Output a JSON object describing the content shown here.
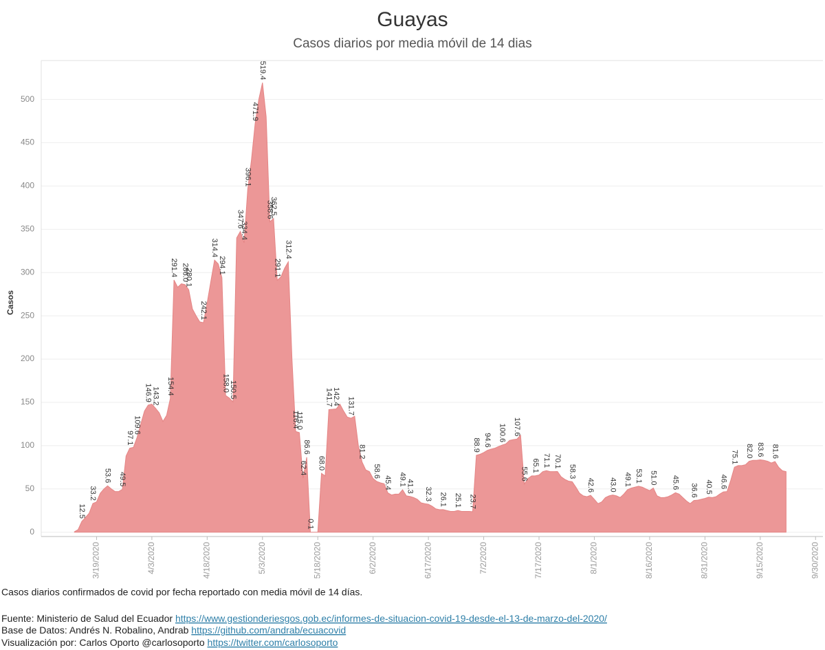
{
  "chart_data": {
    "type": "area",
    "title": "Guayas",
    "subtitle": "Casos diarios por media móvil de 14 dias",
    "y_label": "Casos",
    "x": [
      "3/13/2020",
      "3/14/2020",
      "3/15/2020",
      "3/16/2020",
      "3/17/2020",
      "3/18/2020",
      "3/19/2020",
      "3/20/2020",
      "3/21/2020",
      "3/22/2020",
      "3/23/2020",
      "3/24/2020",
      "3/25/2020",
      "3/26/2020",
      "3/27/2020",
      "3/28/2020",
      "3/29/2020",
      "3/30/2020",
      "3/31/2020",
      "4/1/2020",
      "4/2/2020",
      "4/3/2020",
      "4/4/2020",
      "4/5/2020",
      "4/6/2020",
      "4/7/2020",
      "4/8/2020",
      "4/9/2020",
      "4/10/2020",
      "4/11/2020",
      "4/12/2020",
      "4/13/2020",
      "4/14/2020",
      "4/15/2020",
      "4/16/2020",
      "4/17/2020",
      "4/18/2020",
      "4/19/2020",
      "4/20/2020",
      "4/21/2020",
      "4/22/2020",
      "4/23/2020",
      "4/24/2020",
      "4/25/2020",
      "4/26/2020",
      "4/27/2020",
      "4/28/2020",
      "4/29/2020",
      "4/30/2020",
      "5/1/2020",
      "5/2/2020",
      "5/3/2020",
      "5/4/2020",
      "5/5/2020",
      "5/6/2020",
      "5/7/2020",
      "5/8/2020",
      "5/9/2020",
      "5/10/2020",
      "5/11/2020",
      "5/12/2020",
      "5/13/2020",
      "5/14/2020",
      "5/15/2020",
      "5/16/2020",
      "5/17/2020",
      "5/18/2020",
      "5/19/2020",
      "5/20/2020",
      "5/21/2020",
      "5/22/2020",
      "5/23/2020",
      "5/24/2020",
      "5/25/2020",
      "5/26/2020",
      "5/27/2020",
      "5/28/2020",
      "5/29/2020",
      "5/30/2020",
      "5/31/2020",
      "6/1/2020",
      "6/2/2020",
      "6/3/2020",
      "6/4/2020",
      "6/5/2020",
      "6/6/2020",
      "6/7/2020",
      "6/8/2020",
      "6/9/2020",
      "6/10/2020",
      "6/11/2020",
      "6/12/2020",
      "6/13/2020",
      "6/14/2020",
      "6/15/2020",
      "6/16/2020",
      "6/17/2020",
      "6/18/2020",
      "6/19/2020",
      "6/20/2020",
      "6/21/2020",
      "6/22/2020",
      "6/23/2020",
      "6/24/2020",
      "6/25/2020",
      "6/26/2020",
      "6/27/2020",
      "6/28/2020",
      "6/29/2020",
      "6/30/2020",
      "7/1/2020",
      "7/2/2020",
      "7/3/2020",
      "7/4/2020",
      "7/5/2020",
      "7/6/2020",
      "7/7/2020",
      "7/8/2020",
      "7/9/2020",
      "7/10/2020",
      "7/11/2020",
      "7/12/2020",
      "7/13/2020",
      "7/14/2020",
      "7/15/2020",
      "7/16/2020",
      "7/17/2020",
      "7/18/2020",
      "7/19/2020",
      "7/20/2020",
      "7/21/2020",
      "7/22/2020",
      "7/23/2020",
      "7/24/2020",
      "7/25/2020",
      "7/26/2020",
      "7/27/2020",
      "7/28/2020",
      "7/29/2020",
      "7/30/2020",
      "7/31/2020",
      "8/1/2020",
      "8/2/2020",
      "8/3/2020",
      "8/4/2020",
      "8/5/2020",
      "8/6/2020",
      "8/7/2020",
      "8/8/2020",
      "8/9/2020",
      "8/10/2020",
      "8/11/2020",
      "8/12/2020",
      "8/13/2020",
      "8/14/2020",
      "8/15/2020",
      "8/16/2020",
      "8/17/2020",
      "8/18/2020",
      "8/19/2020",
      "8/20/2020",
      "8/21/2020",
      "8/22/2020",
      "8/23/2020",
      "8/24/2020",
      "8/25/2020",
      "8/26/2020",
      "8/27/2020",
      "8/28/2020",
      "8/29/2020",
      "8/30/2020",
      "8/31/2020",
      "9/1/2020",
      "9/2/2020",
      "9/3/2020",
      "9/4/2020",
      "9/5/2020",
      "9/6/2020",
      "9/7/2020",
      "9/8/2020",
      "9/9/2020",
      "9/10/2020",
      "9/11/2020",
      "9/12/2020",
      "9/13/2020",
      "9/14/2020",
      "9/15/2020",
      "9/16/2020",
      "9/17/2020",
      "9/18/2020",
      "9/19/2020",
      "9/20/2020",
      "9/21/2020",
      "9/22/2020"
    ],
    "series": [
      {
        "color": "#ec9797",
        "line_color": "#e48585",
        "values": [
          0.5,
          3,
          12.5,
          17,
          22,
          33.2,
          35,
          45,
          50,
          53.6,
          50,
          47,
          47,
          49.5,
          88,
          97.1,
          98,
          109.6,
          125,
          140,
          146.9,
          148,
          143.2,
          138,
          128,
          135,
          154.4,
          291.4,
          283,
          287,
          286.0,
          280.1,
          258,
          250,
          243,
          242.1,
          265,
          290,
          314.4,
          310,
          294.1,
          158.0,
          155,
          150.5,
          340,
          347.6,
          334.4,
          396.1,
          430,
          471.9,
          500,
          519.4,
          480,
          358.6,
          362.5,
          291.1,
          295,
          305,
          312.4,
          200,
          116.4,
          115.0,
          62.4,
          86.6,
          0.1,
          0,
          0,
          68.0,
          65,
          141.7,
          142,
          142.4,
          148,
          140,
          133,
          131.7,
          134,
          100,
          81.2,
          72,
          70,
          62,
          58.6,
          57,
          56,
          45.4,
          43,
          44,
          44,
          49.1,
          42,
          41.3,
          40,
          38,
          34,
          33,
          32.3,
          30,
          27,
          26,
          26.1,
          25,
          24,
          24,
          25.1,
          24,
          24,
          24,
          23.7,
          88.9,
          90,
          92,
          94.6,
          96,
          97,
          99,
          100.6,
          102,
          106,
          107,
          107.6,
          112,
          55.6,
          62,
          65,
          65.1,
          66,
          70,
          71.1,
          70,
          70,
          70.1,
          64,
          61,
          59,
          58.3,
          52,
          45,
          42,
          41,
          42.6,
          38,
          33,
          35,
          40,
          42,
          43.0,
          42,
          40,
          44,
          49.1,
          51,
          52,
          53.1,
          52,
          50,
          48,
          51.0,
          42,
          40,
          40,
          41,
          43,
          45.6,
          44,
          40,
          36,
          33,
          36.6,
          37,
          38,
          39,
          40.5,
          40,
          41,
          44,
          46.6,
          47,
          60,
          75.1,
          77,
          77,
          78,
          82.0,
          83,
          83,
          83.6,
          83,
          82,
          80,
          81.6,
          75,
          71,
          70
        ],
        "value_labels": [
          null,
          null,
          "12.5",
          null,
          null,
          "33.2",
          null,
          null,
          null,
          "53.6",
          null,
          null,
          null,
          "49.5",
          null,
          "97.1",
          null,
          "109.6",
          null,
          null,
          "146.9",
          null,
          "143.2",
          null,
          null,
          null,
          "154.4",
          "291.4",
          null,
          null,
          "286.0",
          "280.1",
          null,
          null,
          null,
          "242.1",
          null,
          null,
          "314.4",
          null,
          "294.1",
          "158.0",
          null,
          "150.5",
          null,
          "347.6",
          "334.4",
          "396.1",
          null,
          "471.9",
          null,
          "519.4",
          null,
          "358.6",
          "362.5",
          "291.1",
          null,
          null,
          "312.4",
          null,
          "116.4",
          "115.0",
          "62.4",
          "86.6",
          "0.1",
          null,
          null,
          "68.0",
          null,
          "141.7",
          null,
          "142.4",
          null,
          null,
          null,
          "131.7",
          null,
          null,
          "81.2",
          null,
          null,
          null,
          "58.6",
          null,
          null,
          "45.4",
          null,
          null,
          null,
          "49.1",
          null,
          "41.3",
          null,
          null,
          null,
          null,
          "32.3",
          null,
          null,
          null,
          "26.1",
          null,
          null,
          null,
          "25.1",
          null,
          null,
          null,
          "23.7",
          "88.9",
          null,
          null,
          "94.6",
          null,
          null,
          null,
          "100.6",
          null,
          null,
          null,
          "107.6",
          null,
          "55.6",
          null,
          null,
          "65.1",
          null,
          null,
          "71.1",
          null,
          null,
          "70.1",
          null,
          null,
          null,
          "58.3",
          null,
          null,
          null,
          null,
          "42.6",
          null,
          null,
          null,
          null,
          null,
          "43.0",
          null,
          null,
          null,
          "49.1",
          null,
          null,
          "53.1",
          null,
          null,
          null,
          "51.0",
          null,
          null,
          null,
          null,
          null,
          "45.6",
          null,
          null,
          null,
          null,
          "36.6",
          null,
          null,
          null,
          "40.5",
          null,
          null,
          null,
          "46.6",
          null,
          null,
          "75.1",
          null,
          null,
          null,
          "82.0",
          null,
          null,
          "83.6",
          null,
          null,
          null,
          "81.6",
          null,
          null,
          null
        ]
      }
    ],
    "xlim": [
      "3/4/2020",
      "10/2/2020"
    ],
    "xticks": [
      "3/19/2020",
      "4/3/2020",
      "4/18/2020",
      "5/3/2020",
      "5/18/2020",
      "6/2/2020",
      "6/17/2020",
      "7/2/2020",
      "7/17/2020",
      "8/1/2020",
      "8/16/2020",
      "8/31/2020",
      "9/15/2020",
      "9/30/2020"
    ],
    "ylim": [
      -5,
      545
    ],
    "yticks": [
      0,
      50,
      100,
      150,
      200,
      250,
      300,
      350,
      400,
      450,
      500
    ],
    "grid": true
  },
  "footer": {
    "note": "Casos diarios confirmados de covid por fecha reportado con media móvil de 14 días.",
    "lines": [
      {
        "text": "Fuente: Ministerio de Salud del Ecuador",
        "link": "https://www.gestionderiesgos.gob.ec/informes-de-situacion-covid-19-desde-el-13-de-marzo-del-2020/"
      },
      {
        "text": "Base de Datos: Andrés N. Robalino, Andrab",
        "link": "https://github.com/andrab/ecuacovid"
      },
      {
        "text": "Visualización por: Carlos Oporto @carlosoporto",
        "link": "https://twitter.com/carlosoporto"
      }
    ]
  }
}
